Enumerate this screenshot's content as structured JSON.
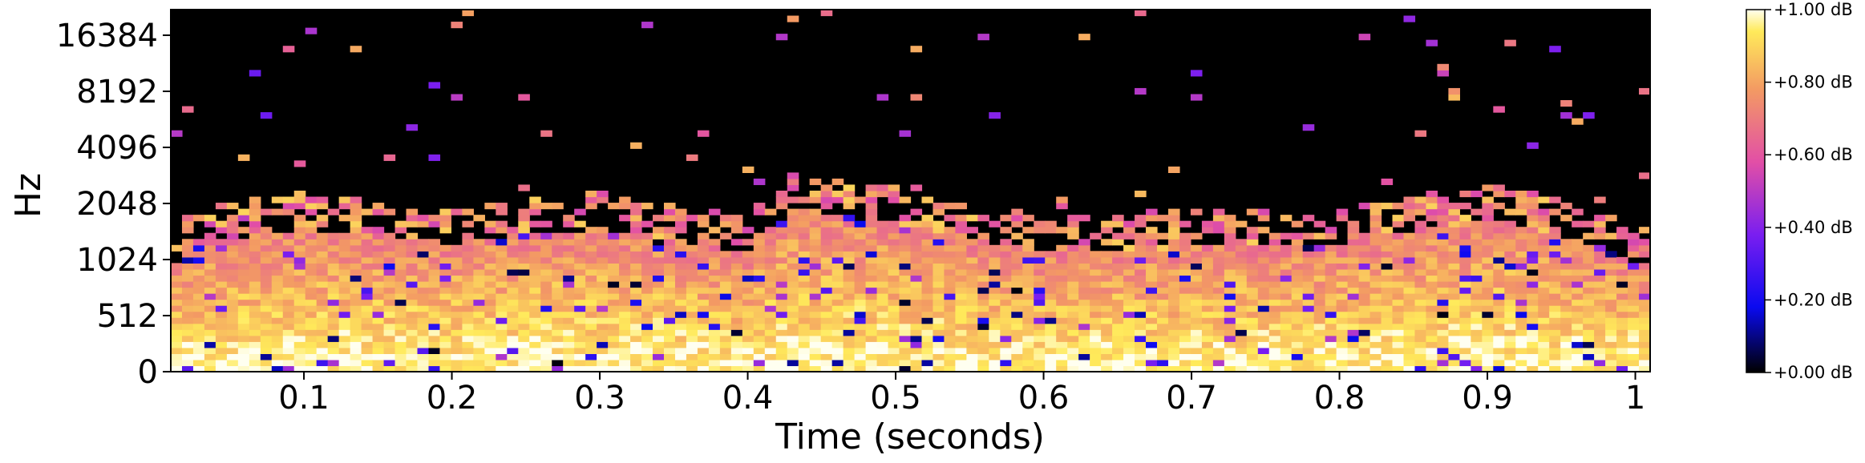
{
  "chart_data": {
    "type": "heatmap",
    "title": "",
    "xlabel": "Time (seconds)",
    "ylabel": "Hz",
    "xlim": [
      0.01,
      1.01
    ],
    "x_ticks": [
      "0.1",
      "0.2",
      "0.3",
      "0.4",
      "0.5",
      "0.6",
      "0.7",
      "0.8",
      "0.9",
      "1"
    ],
    "x_tick_values": [
      0.1,
      0.2,
      0.3,
      0.4,
      0.5,
      0.6,
      0.7,
      0.8,
      0.9,
      1.0
    ],
    "y_scale": "log2",
    "y_ticks": [
      "0",
      "512",
      "1024",
      "2048",
      "4096",
      "8192",
      "16384"
    ],
    "y_tick_values": [
      0,
      512,
      1024,
      2048,
      4096,
      8192,
      16384
    ],
    "colorbar": {
      "range": [
        0.0,
        1.0
      ],
      "ticks": [
        "+0.00 dB",
        "+0.20 dB",
        "+0.40 dB",
        "+0.60 dB",
        "+0.80 dB",
        "+1.00 dB"
      ],
      "tick_values": [
        0.0,
        0.2,
        0.4,
        0.6,
        0.8,
        1.0
      ],
      "colormap": "plasma-like",
      "stops": [
        "#000000",
        "#0a0af0",
        "#7a1ef0",
        "#e24fa6",
        "#f39a63",
        "#ffea5a",
        "#fffff0"
      ]
    },
    "energy_profile": {
      "description_free": true,
      "time": [
        0.02,
        0.1,
        0.2,
        0.3,
        0.4,
        0.43,
        0.5,
        0.6,
        0.7,
        0.8,
        0.9,
        1.0
      ],
      "upper_freq_hz": [
        1200,
        1500,
        1250,
        1500,
        1100,
        1900,
        1600,
        1100,
        1200,
        1200,
        1700,
        1000
      ]
    }
  }
}
